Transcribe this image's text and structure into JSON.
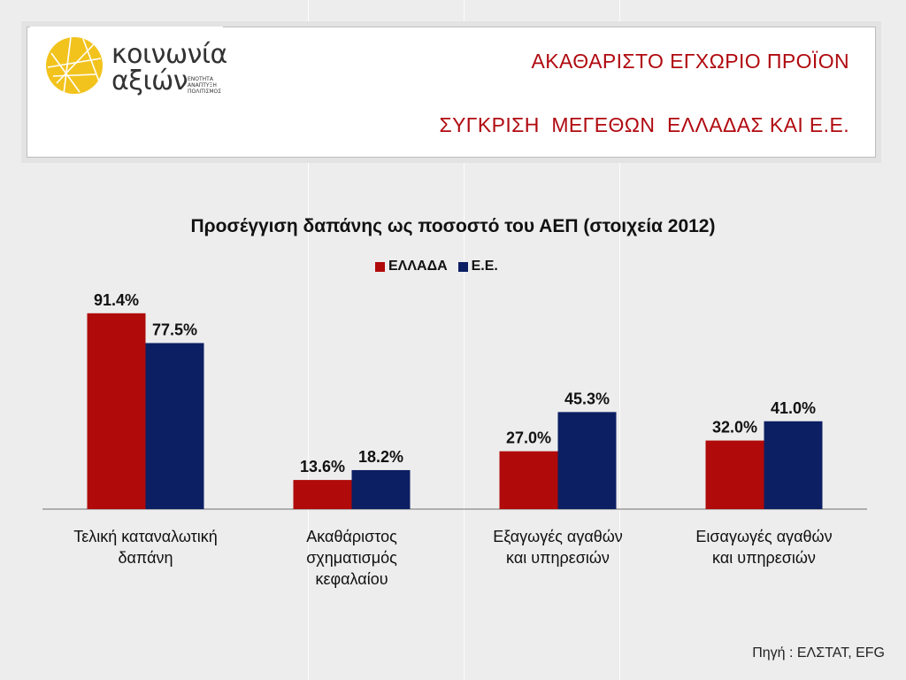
{
  "header": {
    "title_line1": "ΑΚΑΘΑΡΙΣΤΟ ΕΓΧΩΡΙΟ ΠΡΟΪΟΝ",
    "title_line2": "ΣΥΓΚΡΙΣΗ  ΜΕΓΕΘΩΝ  ΕΛΛΑΔΑΣ ΚΑΙ Ε.Ε.",
    "logo": {
      "word1": "κοινωνία",
      "word2": "αξιών",
      "tagline": "ΕΝΟΤΗΤΑ ΑΝΑΠΤΥΞΗ ΠΟΛΙΤΙΣΜΟΣ",
      "icon": "yellow-network-circle-icon",
      "color": "#f2c31d"
    }
  },
  "chart_data": {
    "type": "bar",
    "title": "Προσέγγιση δαπάνης ως ποσοστό του ΑΕΠ  (στοιχεία 2012)",
    "categories": [
      "Τελική καταναλωτική\nδαπάνη",
      "Ακαθάριστος\nσχηματισμός\nκεφαλαίου",
      "Εξαγωγές αγαθών\nκαι υπηρεσιών",
      "Εισαγωγές αγαθών\nκαι υπηρεσιών"
    ],
    "series": [
      {
        "name": "ΕΛΛΑΔΑ",
        "values": [
          91.4,
          13.6,
          27.0,
          32.0
        ],
        "labels": [
          "91.4%",
          "13.6%",
          "27.0%",
          "32.0%"
        ],
        "color": "#b00a0a"
      },
      {
        "name": "Ε.Ε.",
        "values": [
          77.5,
          18.2,
          45.3,
          41.0
        ],
        "labels": [
          "77.5%",
          "18.2%",
          "45.3%",
          "41.0%"
        ],
        "color": "#0c1f63"
      }
    ],
    "ylim": [
      0,
      100
    ],
    "grid": false,
    "legend_position": "top"
  },
  "footer": {
    "source": "Πηγή : ΕΛΣΤΑΤ, EFG"
  }
}
